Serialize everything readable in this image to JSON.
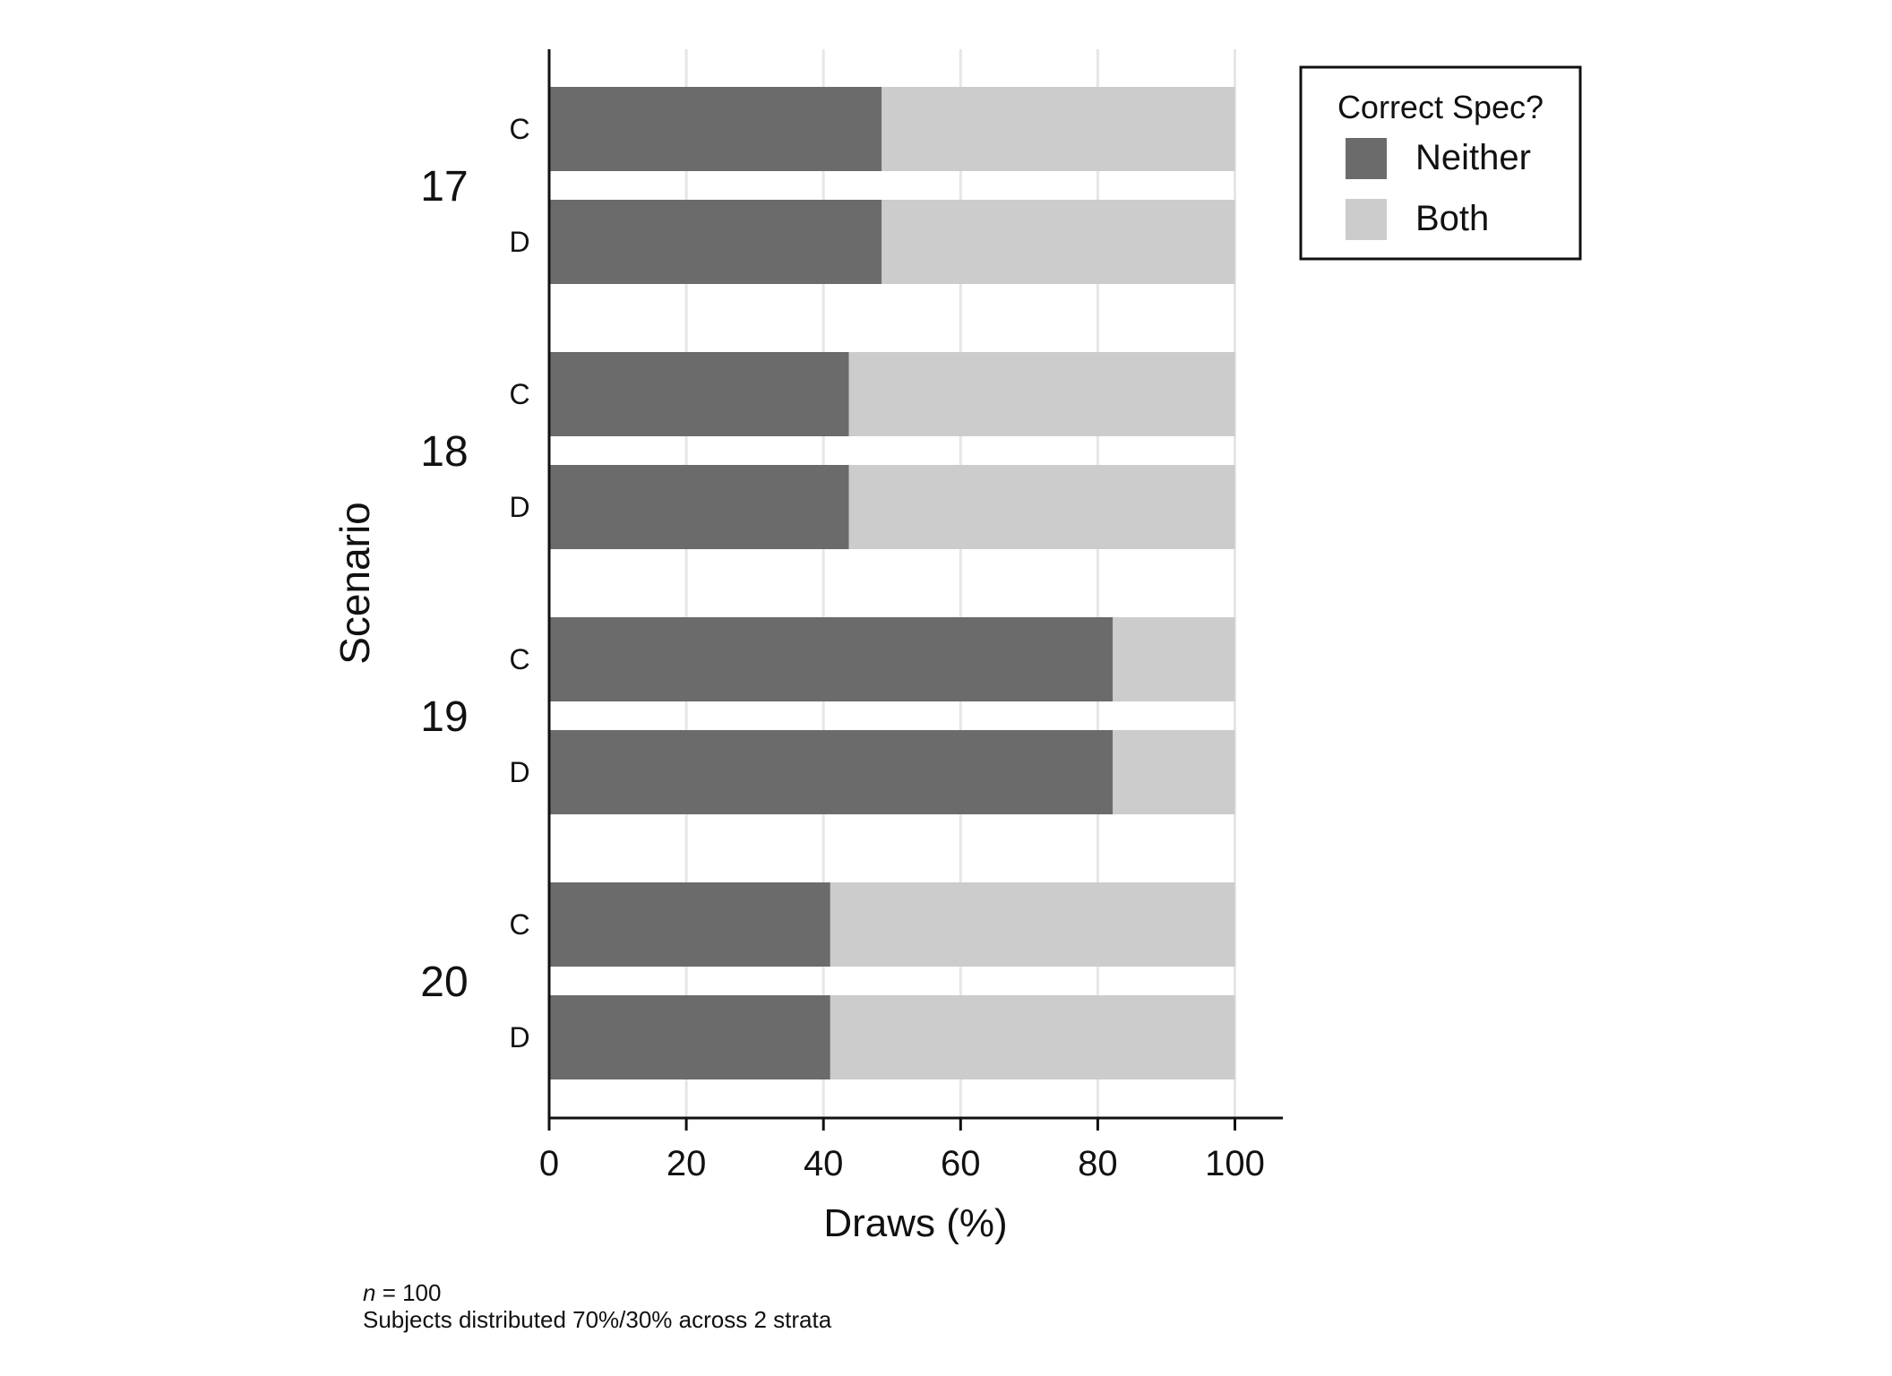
{
  "chart_data": {
    "type": "bar",
    "orientation": "horizontal",
    "stacked": true,
    "xlabel": "Draws (%)",
    "ylabel": "Scenario",
    "xlim": [
      0,
      107
    ],
    "xticks": [
      0,
      20,
      40,
      60,
      80,
      100
    ],
    "grid": true,
    "groups": [
      "17",
      "18",
      "19",
      "20"
    ],
    "subcategories": [
      "C",
      "D"
    ],
    "series": [
      {
        "name": "Neither",
        "color": "#6b6b6b",
        "values": [
          48.5,
          48.5,
          43.7,
          43.7,
          82.2,
          82.2,
          41.0,
          41.0
        ]
      },
      {
        "name": "Both",
        "color": "#cccccc",
        "values": [
          51.5,
          51.5,
          56.3,
          56.3,
          17.8,
          17.8,
          59.0,
          59.0
        ]
      }
    ],
    "legend": {
      "title": "Correct Spec?",
      "position": "top-right"
    }
  },
  "notes": {
    "n_label": "n",
    "n_value": " = 100",
    "strata": "Subjects distributed 70%/30% across 2 strata"
  }
}
